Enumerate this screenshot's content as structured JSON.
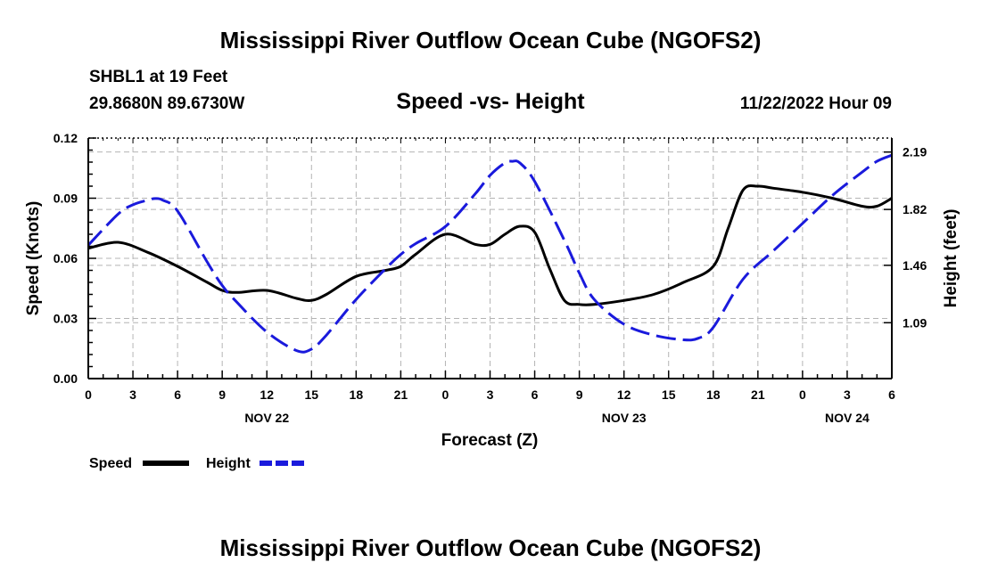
{
  "header": {
    "title": "Mississippi River Outflow Ocean Cube (NGOFS2)",
    "station": "SHBL1 at 19 Feet",
    "coords": "29.8680N  89.6730W",
    "subtitle": "Speed -vs- Height",
    "datetime": "11/22/2022 Hour 09",
    "bottom_title": "Mississippi River Outflow Ocean Cube (NGOFS2)"
  },
  "chart_data": {
    "type": "line",
    "title": "Speed -vs- Height",
    "xlabel": "Forecast (Z)",
    "ylabel": "Speed (Knots)",
    "y2label": "Height (feet)",
    "xlim": [
      0,
      54
    ],
    "ylim": [
      0,
      0.12
    ],
    "y2lim": [
      0.73,
      2.28
    ],
    "x_ticks": [
      0,
      3,
      6,
      9,
      12,
      15,
      18,
      21,
      24,
      27,
      30,
      33,
      36,
      39,
      42,
      45,
      48,
      51,
      54
    ],
    "x_tick_labels": [
      "0",
      "3",
      "6",
      "9",
      "12",
      "15",
      "18",
      "21",
      "0",
      "3",
      "6",
      "9",
      "12",
      "15",
      "18",
      "21",
      "0",
      "3",
      "6"
    ],
    "date_labels": [
      {
        "x": 12,
        "label": "NOV 22"
      },
      {
        "x": 36,
        "label": "NOV 23"
      },
      {
        "x": 51,
        "label": "NOV 24"
      }
    ],
    "y_ticks": [
      0,
      0.03,
      0.06,
      0.09,
      0.12
    ],
    "y_tick_labels": [
      "0.00",
      "0.03",
      "0.06",
      "0.09",
      "0.12"
    ],
    "y2_ticks": [
      1.09,
      1.46,
      1.82,
      2.19
    ],
    "y2_tick_labels": [
      "1.09",
      "1.46",
      "1.82",
      "2.19"
    ],
    "grid": true,
    "legend_position": "bottom-left",
    "series": [
      {
        "name": "Speed",
        "axis": "left",
        "color": "#000000",
        "dash": "solid",
        "x": [
          0,
          2,
          4,
          6,
          8,
          9,
          10,
          12,
          14,
          15,
          16,
          18,
          20,
          21,
          22,
          24,
          26,
          27,
          28,
          29,
          30,
          31,
          32,
          33,
          34,
          36,
          38,
          40,
          42,
          43,
          44,
          45,
          46,
          48,
          50,
          52,
          53,
          54
        ],
        "values": [
          0.065,
          0.068,
          0.063,
          0.056,
          0.048,
          0.044,
          0.043,
          0.044,
          0.04,
          0.039,
          0.042,
          0.051,
          0.054,
          0.056,
          0.062,
          0.072,
          0.067,
          0.067,
          0.072,
          0.076,
          0.073,
          0.055,
          0.039,
          0.037,
          0.037,
          0.039,
          0.042,
          0.048,
          0.056,
          0.075,
          0.094,
          0.096,
          0.095,
          0.093,
          0.09,
          0.086,
          0.086,
          0.09
        ]
      },
      {
        "name": "Height",
        "axis": "right",
        "color": "#1a1adc",
        "dash": "dashed",
        "x": [
          0,
          2,
          3,
          4,
          4.5,
          5,
          6,
          8,
          9,
          10,
          12,
          14,
          15,
          16,
          18,
          20,
          21,
          22,
          24,
          26,
          27,
          28,
          28.5,
          29,
          30,
          32,
          33,
          34,
          36,
          38,
          40,
          41,
          42,
          44,
          46,
          48,
          50,
          52,
          53,
          54
        ],
        "values": [
          1.59,
          1.79,
          1.85,
          1.88,
          1.89,
          1.88,
          1.81,
          1.48,
          1.33,
          1.22,
          1.03,
          0.91,
          0.92,
          1.01,
          1.24,
          1.44,
          1.53,
          1.6,
          1.71,
          1.92,
          2.04,
          2.12,
          2.13,
          2.12,
          2.0,
          1.62,
          1.41,
          1.24,
          1.08,
          1.01,
          0.98,
          0.99,
          1.06,
          1.37,
          1.55,
          1.73,
          1.91,
          2.06,
          2.13,
          2.17
        ]
      }
    ]
  }
}
